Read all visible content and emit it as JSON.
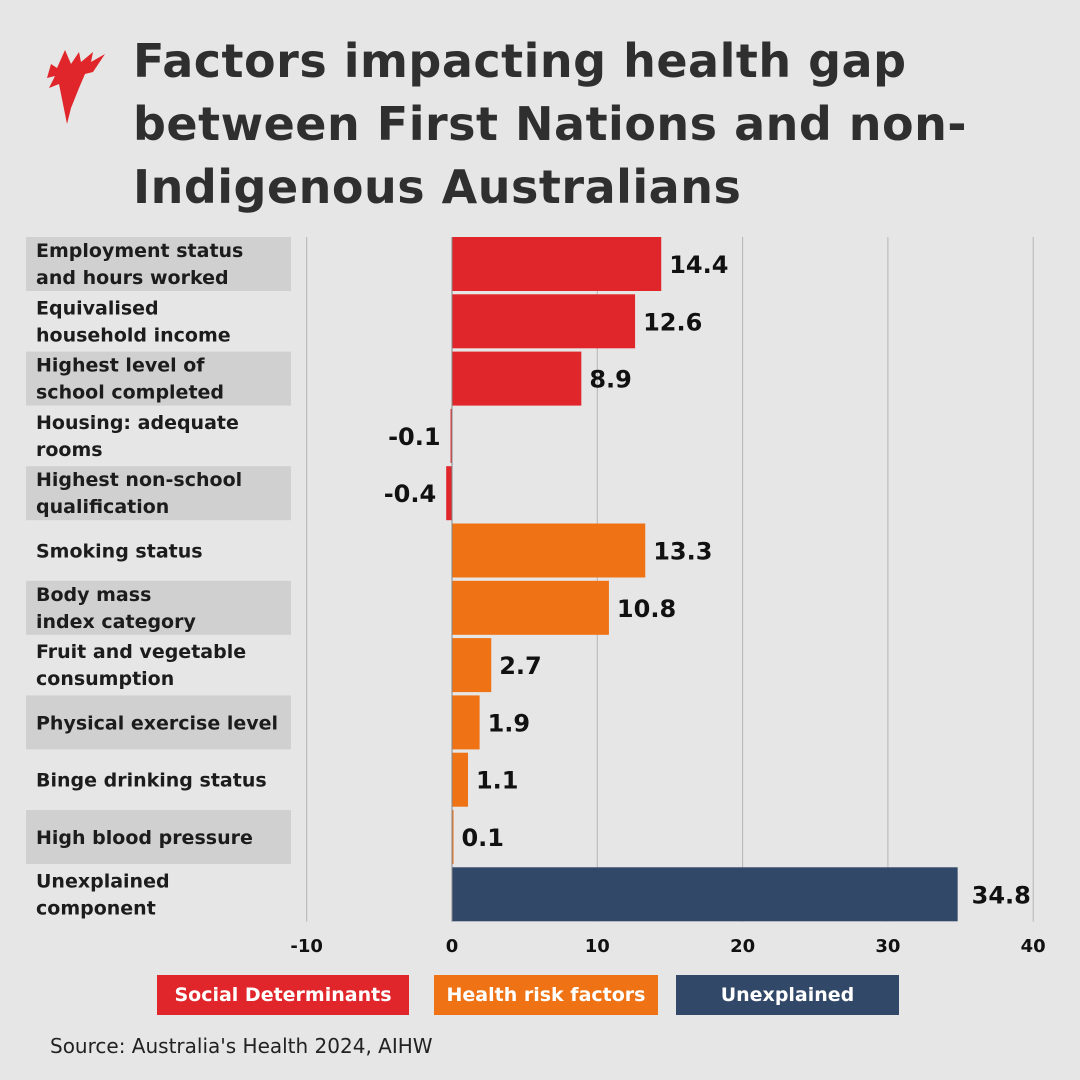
{
  "title": "Factors impacting health gap between First Nations and non-Indigenous Australians",
  "source": "Source: Australia's Health 2024, AIHW",
  "logo": "SBS",
  "colors": {
    "social": "#e0262a",
    "health": "#ef7215",
    "unexplained": "#324869",
    "background": "#e6e6e6",
    "label_band": "#d0d0d0"
  },
  "legend": [
    {
      "label": "Social Determinants",
      "color": "#e0262a"
    },
    {
      "label": "Health risk factors",
      "color": "#ef7215"
    },
    {
      "label": "Unexplained",
      "color": "#324869"
    }
  ],
  "chart_data": {
    "type": "bar",
    "orientation": "horizontal",
    "categories": [
      [
        "Employment status",
        "and hours worked"
      ],
      [
        "Equivalised",
        "household income"
      ],
      [
        "Highest level of",
        "school completed"
      ],
      [
        "Housing: adequate",
        "rooms"
      ],
      [
        "Highest non-school",
        "qualification"
      ],
      [
        "Smoking status"
      ],
      [
        "Body mass",
        "index category"
      ],
      [
        "Fruit and vegetable",
        "consumption"
      ],
      [
        "Physical exercise level"
      ],
      [
        "Binge drinking status"
      ],
      [
        "High blood pressure"
      ],
      [
        "Unexplained",
        "component"
      ]
    ],
    "values": [
      14.4,
      12.6,
      8.9,
      -0.1,
      -0.4,
      13.3,
      10.8,
      2.7,
      1.9,
      1.1,
      0.1,
      34.8
    ],
    "labels": [
      "14.4",
      "12.6",
      "8.9",
      "-0.1",
      "-0.4",
      "13.3",
      "10.8",
      "2.7",
      "1.9",
      "1.1",
      "0.1",
      "34.8"
    ],
    "groups": [
      "Social Determinants",
      "Social Determinants",
      "Social Determinants",
      "Social Determinants",
      "Social Determinants",
      "Health risk factors",
      "Health risk factors",
      "Health risk factors",
      "Health risk factors",
      "Health risk factors",
      "Health risk factors",
      "Unexplained"
    ],
    "xlim": [
      -10,
      40
    ],
    "xticks": [
      -10,
      0,
      10,
      20,
      30,
      40
    ],
    "grid": true,
    "legend_position": "bottom"
  }
}
